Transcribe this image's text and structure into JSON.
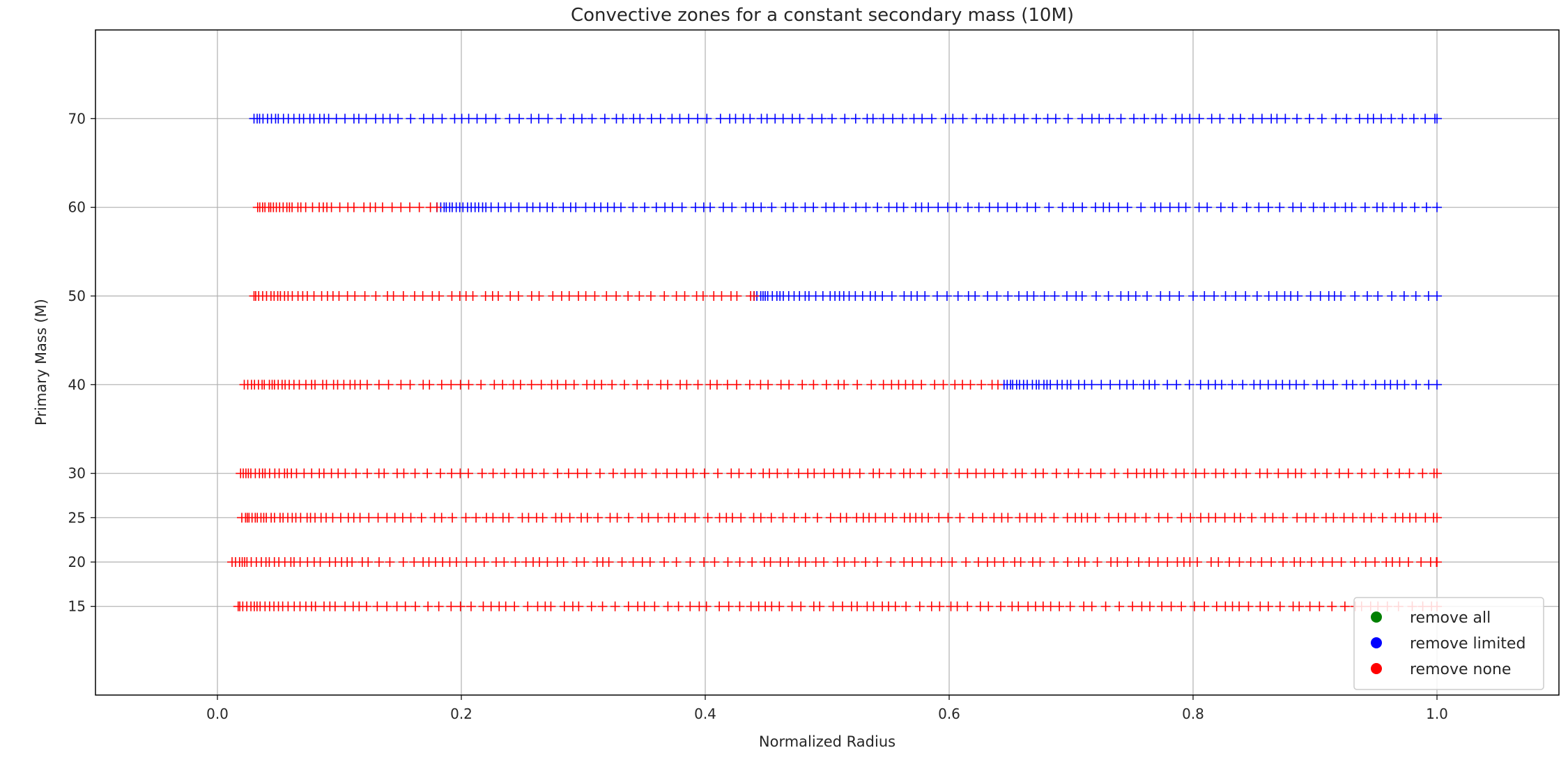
{
  "chart_data": {
    "type": "scatter",
    "title": "Convective zones for a constant secondary mass (10M)",
    "xlabel": "Normalized Radius",
    "ylabel": "Primary Mass (M)",
    "xlim": [
      -0.1,
      1.1
    ],
    "ylim": [
      5,
      80
    ],
    "xticks": [
      0.0,
      0.2,
      0.4,
      0.6,
      0.8,
      1.0
    ],
    "xtick_labels": [
      "0.0",
      "0.2",
      "0.4",
      "0.6",
      "0.8",
      "1.0"
    ],
    "yticks": [
      15,
      20,
      25,
      30,
      40,
      50,
      60,
      70
    ],
    "ytick_labels": [
      "15",
      "20",
      "25",
      "30",
      "40",
      "50",
      "60",
      "70"
    ],
    "grid": true,
    "marker": "+",
    "legend_position": "lower-right",
    "colors": {
      "remove all": "#008000",
      "remove limited": "#0000ff",
      "remove none": "#ff0000"
    },
    "series": [
      {
        "name": "remove all",
        "rows": []
      },
      {
        "name": "remove limited",
        "rows": [
          {
            "y": 70,
            "x_start": 0.03,
            "x_end": 1.0
          },
          {
            "y": 60,
            "x_start": 0.18,
            "x_end": 1.0
          },
          {
            "y": 50,
            "x_start": 0.44,
            "x_end": 1.0
          },
          {
            "y": 40,
            "x_start": 0.645,
            "x_end": 1.0
          }
        ]
      },
      {
        "name": "remove none",
        "rows": [
          {
            "y": 60,
            "x_start": 0.033,
            "x_end": 0.18
          },
          {
            "y": 50,
            "x_start": 0.03,
            "x_end": 0.44
          },
          {
            "y": 40,
            "x_start": 0.022,
            "x_end": 0.64
          },
          {
            "y": 30,
            "x_start": 0.019,
            "x_end": 1.0
          },
          {
            "y": 25,
            "x_start": 0.02,
            "x_end": 1.0
          },
          {
            "y": 20,
            "x_start": 0.012,
            "x_end": 1.0
          },
          {
            "y": 15,
            "x_start": 0.017,
            "x_end": 1.0
          }
        ]
      }
    ]
  }
}
